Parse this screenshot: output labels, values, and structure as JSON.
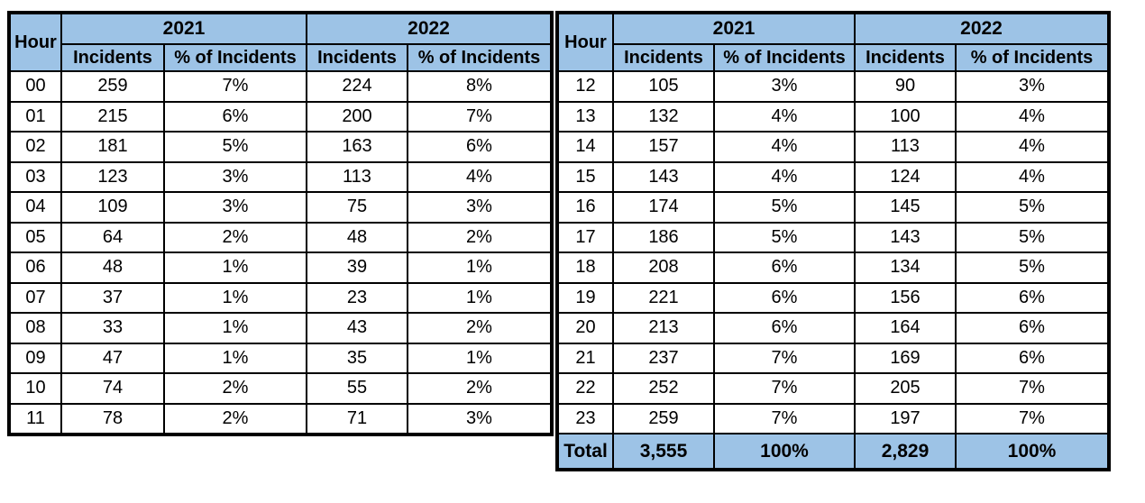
{
  "colors": {
    "header_bg": "#9DC3E6",
    "border": "#000000",
    "cell_bg": "#FFFFFF",
    "text": "#000000"
  },
  "tables": [
    {
      "name": "hours-00-11",
      "corner_label": "Hour",
      "year_headers": [
        "2021",
        "2022"
      ],
      "column_headers": [
        "Incidents",
        "% of Incidents",
        "Incidents",
        "% of Incidents"
      ],
      "rows": [
        [
          "00",
          "259",
          "7%",
          "224",
          "8%"
        ],
        [
          "01",
          "215",
          "6%",
          "200",
          "7%"
        ],
        [
          "02",
          "181",
          "5%",
          "163",
          "6%"
        ],
        [
          "03",
          "123",
          "3%",
          "113",
          "4%"
        ],
        [
          "04",
          "109",
          "3%",
          "75",
          "3%"
        ],
        [
          "05",
          "64",
          "2%",
          "48",
          "2%"
        ],
        [
          "06",
          "48",
          "1%",
          "39",
          "1%"
        ],
        [
          "07",
          "37",
          "1%",
          "23",
          "1%"
        ],
        [
          "08",
          "33",
          "1%",
          "43",
          "2%"
        ],
        [
          "09",
          "47",
          "1%",
          "35",
          "1%"
        ],
        [
          "10",
          "74",
          "2%",
          "55",
          "2%"
        ],
        [
          "11",
          "78",
          "2%",
          "71",
          "3%"
        ]
      ]
    },
    {
      "name": "hours-12-23",
      "corner_label": "Hour",
      "year_headers": [
        "2021",
        "2022"
      ],
      "column_headers": [
        "Incidents",
        "% of Incidents",
        "Incidents",
        "% of Incidents"
      ],
      "rows": [
        [
          "12",
          "105",
          "3%",
          "90",
          "3%"
        ],
        [
          "13",
          "132",
          "4%",
          "100",
          "4%"
        ],
        [
          "14",
          "157",
          "4%",
          "113",
          "4%"
        ],
        [
          "15",
          "143",
          "4%",
          "124",
          "4%"
        ],
        [
          "16",
          "174",
          "5%",
          "145",
          "5%"
        ],
        [
          "17",
          "186",
          "5%",
          "143",
          "5%"
        ],
        [
          "18",
          "208",
          "6%",
          "134",
          "5%"
        ],
        [
          "19",
          "221",
          "6%",
          "156",
          "6%"
        ],
        [
          "20",
          "213",
          "6%",
          "164",
          "6%"
        ],
        [
          "21",
          "237",
          "7%",
          "169",
          "6%"
        ],
        [
          "22",
          "252",
          "7%",
          "205",
          "7%"
        ],
        [
          "23",
          "259",
          "7%",
          "197",
          "7%"
        ]
      ],
      "total_row": [
        "Total",
        "3,555",
        "100%",
        "2,829",
        "100%"
      ]
    }
  ]
}
